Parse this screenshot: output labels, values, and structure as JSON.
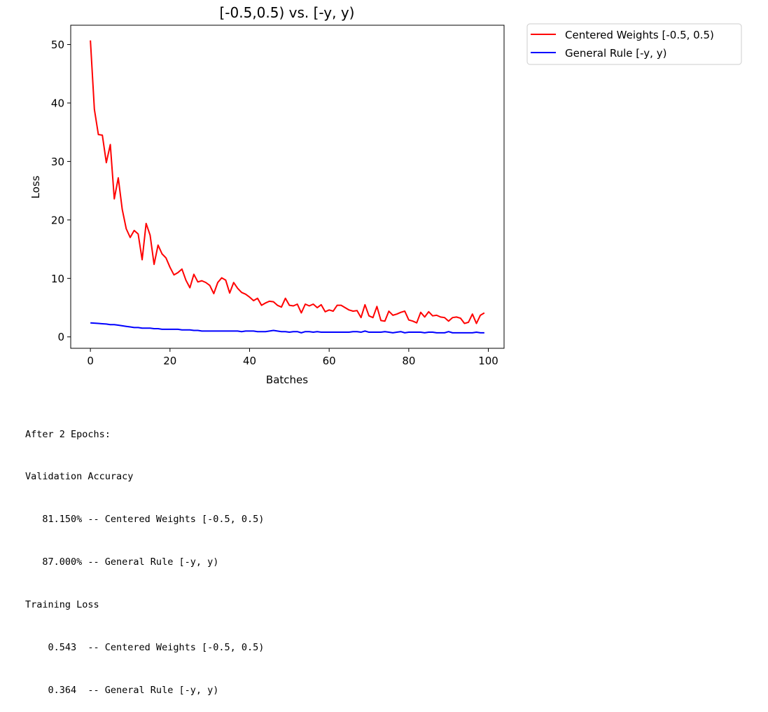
{
  "chart_data": {
    "type": "line",
    "title": "[-0.5,0.5) vs. [-y, y)",
    "xlabel": "Batches",
    "ylabel": "Loss",
    "xlim": [
      -4.95,
      103.95
    ],
    "ylim": [
      -1.95,
      53.3
    ],
    "x_ticks": [
      0,
      20,
      40,
      60,
      80,
      100
    ],
    "y_ticks": [
      0,
      10,
      20,
      30,
      40,
      50
    ],
    "grid": false,
    "legend_position": "outside-upper-right",
    "series": [
      {
        "name": "Centered Weights [-0.5, 0.5)",
        "color": "#ff0000",
        "x": [
          0,
          1,
          2,
          3,
          4,
          5,
          6,
          7,
          8,
          9,
          10,
          11,
          12,
          13,
          14,
          15,
          16,
          17,
          18,
          19,
          20,
          21,
          22,
          23,
          24,
          25,
          26,
          27,
          28,
          29,
          30,
          31,
          32,
          33,
          34,
          35,
          36,
          37,
          38,
          39,
          40,
          41,
          42,
          43,
          44,
          45,
          46,
          47,
          48,
          49,
          50,
          51,
          52,
          53,
          54,
          55,
          56,
          57,
          58,
          59,
          60,
          61,
          62,
          63,
          64,
          65,
          66,
          67,
          68,
          69,
          70,
          71,
          72,
          73,
          74,
          75,
          76,
          77,
          78,
          79,
          80,
          81,
          82,
          83,
          84,
          85,
          86,
          87,
          88,
          89,
          90,
          91,
          92,
          93,
          94,
          95,
          96,
          97,
          98,
          99
        ],
        "values": [
          50.7,
          38.9,
          34.6,
          34.5,
          29.8,
          32.9,
          23.6,
          27.2,
          21.8,
          18.5,
          17.0,
          18.2,
          17.6,
          13.2,
          19.4,
          17.4,
          12.4,
          15.7,
          14.2,
          13.5,
          11.9,
          10.6,
          11.0,
          11.6,
          9.7,
          8.4,
          10.7,
          9.4,
          9.6,
          9.3,
          8.8,
          7.4,
          9.3,
          10.1,
          9.7,
          7.5,
          9.3,
          8.3,
          7.6,
          7.3,
          6.8,
          6.2,
          6.6,
          5.4,
          5.8,
          6.1,
          6.0,
          5.4,
          5.1,
          6.6,
          5.4,
          5.3,
          5.6,
          4.1,
          5.6,
          5.3,
          5.6,
          5.0,
          5.5,
          4.3,
          4.6,
          4.4,
          5.4,
          5.4,
          5.0,
          4.6,
          4.4,
          4.5,
          3.3,
          5.5,
          3.6,
          3.3,
          5.2,
          2.8,
          2.7,
          4.4,
          3.7,
          3.9,
          4.2,
          4.4,
          2.9,
          2.7,
          2.4,
          4.2,
          3.4,
          4.3,
          3.6,
          3.7,
          3.4,
          3.3,
          2.7,
          3.3,
          3.4,
          3.2,
          2.3,
          2.5,
          3.9,
          2.3,
          3.7,
          4.1
        ]
      },
      {
        "name": "General Rule [-y, y)",
        "color": "#0000ff",
        "x": [
          0,
          1,
          2,
          3,
          4,
          5,
          6,
          7,
          8,
          9,
          10,
          11,
          12,
          13,
          14,
          15,
          16,
          17,
          18,
          19,
          20,
          21,
          22,
          23,
          24,
          25,
          26,
          27,
          28,
          29,
          30,
          31,
          32,
          33,
          34,
          35,
          36,
          37,
          38,
          39,
          40,
          41,
          42,
          43,
          44,
          45,
          46,
          47,
          48,
          49,
          50,
          51,
          52,
          53,
          54,
          55,
          56,
          57,
          58,
          59,
          60,
          61,
          62,
          63,
          64,
          65,
          66,
          67,
          68,
          69,
          70,
          71,
          72,
          73,
          74,
          75,
          76,
          77,
          78,
          79,
          80,
          81,
          82,
          83,
          84,
          85,
          86,
          87,
          88,
          89,
          90,
          91,
          92,
          93,
          94,
          95,
          96,
          97,
          98,
          99
        ],
        "values": [
          2.4,
          2.35,
          2.3,
          2.25,
          2.2,
          2.1,
          2.1,
          2.0,
          1.9,
          1.8,
          1.7,
          1.6,
          1.6,
          1.5,
          1.5,
          1.5,
          1.4,
          1.4,
          1.3,
          1.3,
          1.3,
          1.3,
          1.3,
          1.2,
          1.2,
          1.2,
          1.1,
          1.1,
          1.0,
          1.0,
          1.0,
          1.0,
          1.0,
          1.0,
          1.0,
          1.0,
          1.0,
          1.0,
          0.9,
          1.0,
          1.0,
          1.0,
          0.9,
          0.9,
          0.9,
          1.0,
          1.1,
          1.0,
          0.9,
          0.9,
          0.8,
          0.9,
          0.9,
          0.7,
          0.9,
          0.9,
          0.8,
          0.9,
          0.8,
          0.8,
          0.8,
          0.8,
          0.8,
          0.8,
          0.8,
          0.8,
          0.9,
          0.9,
          0.8,
          1.0,
          0.8,
          0.8,
          0.8,
          0.8,
          0.9,
          0.8,
          0.7,
          0.8,
          0.9,
          0.7,
          0.8,
          0.8,
          0.8,
          0.8,
          0.7,
          0.8,
          0.8,
          0.7,
          0.7,
          0.7,
          0.9,
          0.7,
          0.7,
          0.7,
          0.7,
          0.7,
          0.7,
          0.8,
          0.7,
          0.7
        ]
      }
    ]
  },
  "summary": {
    "lines": [
      "After 2 Epochs:",
      "Validation Accuracy",
      "   81.150% -- Centered Weights [-0.5, 0.5)",
      "   87.000% -- General Rule [-y, y)",
      "Training Loss",
      "    0.543  -- Centered Weights [-0.5, 0.5)",
      "    0.364  -- General Rule [-y, y)"
    ]
  }
}
